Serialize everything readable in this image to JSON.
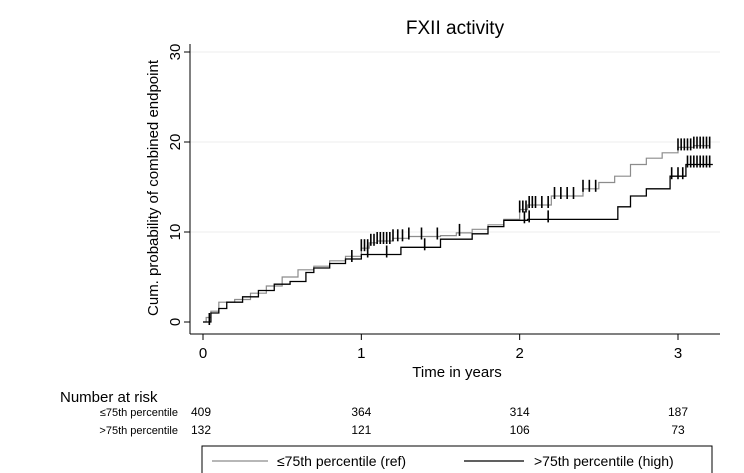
{
  "chart_data": {
    "type": "line",
    "title": "FXII activity",
    "xlabel": "Time in years",
    "ylabel": "Cum. probability of combined endpoint",
    "xlim": [
      0,
      3.25
    ],
    "ylim": [
      0,
      31
    ],
    "x_ticks": [
      "0",
      "1",
      "2",
      "3"
    ],
    "y_ticks": [
      "0",
      "10",
      "20",
      "30"
    ],
    "grid": "horizontal",
    "series": [
      {
        "name": "≤75th percentile (ref)",
        "color": "#8c8c8c",
        "points": [
          [
            0,
            0
          ],
          [
            0.02,
            0.5
          ],
          [
            0.05,
            1.2
          ],
          [
            0.1,
            2.2
          ],
          [
            0.2,
            2.5
          ],
          [
            0.3,
            3.2
          ],
          [
            0.4,
            4.0
          ],
          [
            0.5,
            5.0
          ],
          [
            0.6,
            5.8
          ],
          [
            0.7,
            6.2
          ],
          [
            0.8,
            6.8
          ],
          [
            0.9,
            7.3
          ],
          [
            1.0,
            8.2
          ],
          [
            1.05,
            8.8
          ],
          [
            1.1,
            9.0
          ],
          [
            1.2,
            9.3
          ],
          [
            1.3,
            9.5
          ],
          [
            1.5,
            9.6
          ],
          [
            1.6,
            9.9
          ],
          [
            1.7,
            10.3
          ],
          [
            1.8,
            10.8
          ],
          [
            1.9,
            11.4
          ],
          [
            2.0,
            12.5
          ],
          [
            2.05,
            13.0
          ],
          [
            2.2,
            14.0
          ],
          [
            2.4,
            14.8
          ],
          [
            2.5,
            15.5
          ],
          [
            2.6,
            16.2
          ],
          [
            2.7,
            17.5
          ],
          [
            2.8,
            18.2
          ],
          [
            2.9,
            18.8
          ],
          [
            3.0,
            19.4
          ],
          [
            3.1,
            19.6
          ],
          [
            3.2,
            19.6
          ]
        ],
        "censor_x": [
          1.0,
          1.02,
          1.04,
          1.06,
          1.08,
          1.1,
          1.12,
          1.14,
          1.16,
          1.18,
          1.2,
          1.23,
          1.26,
          1.3,
          1.38,
          1.48,
          1.62,
          2.0,
          2.02,
          2.04,
          2.06,
          2.08,
          2.1,
          2.14,
          2.18,
          2.22,
          2.26,
          2.3,
          2.34,
          2.4,
          2.44,
          2.48,
          3.0,
          3.02,
          3.04,
          3.06,
          3.08,
          3.1,
          3.12,
          3.14,
          3.16,
          3.18,
          3.2
        ]
      },
      {
        "name": ">75th percentile (high)",
        "color": "#000000",
        "points": [
          [
            0,
            0
          ],
          [
            0.05,
            1.0
          ],
          [
            0.1,
            1.5
          ],
          [
            0.15,
            2.2
          ],
          [
            0.25,
            2.8
          ],
          [
            0.35,
            3.5
          ],
          [
            0.45,
            4.2
          ],
          [
            0.55,
            4.5
          ],
          [
            0.65,
            5.5
          ],
          [
            0.7,
            6.0
          ],
          [
            0.8,
            6.5
          ],
          [
            0.9,
            7.0
          ],
          [
            1.0,
            7.5
          ],
          [
            1.25,
            8.3
          ],
          [
            1.5,
            9.2
          ],
          [
            1.6,
            9.2
          ],
          [
            1.7,
            9.8
          ],
          [
            1.8,
            10.6
          ],
          [
            1.9,
            11.3
          ],
          [
            2.05,
            11.4
          ],
          [
            2.6,
            11.4
          ],
          [
            2.62,
            12.8
          ],
          [
            2.7,
            14.0
          ],
          [
            2.8,
            14.8
          ],
          [
            2.95,
            16.2
          ],
          [
            3.05,
            17.5
          ],
          [
            3.15,
            17.5
          ],
          [
            3.22,
            17.5
          ]
        ],
        "censor_x": [
          0.04,
          0.94,
          1.04,
          1.16,
          1.4,
          2.03,
          2.06,
          2.18,
          2.96,
          3.0,
          3.03,
          3.06,
          3.08,
          3.1,
          3.12,
          3.14,
          3.16,
          3.18,
          3.2
        ]
      }
    ],
    "risk_table": {
      "header": "Number at risk",
      "rows": [
        {
          "label": "≤75th percentile",
          "values": [
            "409",
            "364",
            "314",
            "187"
          ]
        },
        {
          "label": ">75th percentile",
          "values": [
            "132",
            "121",
            "106",
            "73"
          ]
        }
      ]
    },
    "legend": {
      "position": "bottom",
      "entries": [
        "≤75th percentile (ref)",
        ">75th percentile (high)"
      ]
    }
  }
}
